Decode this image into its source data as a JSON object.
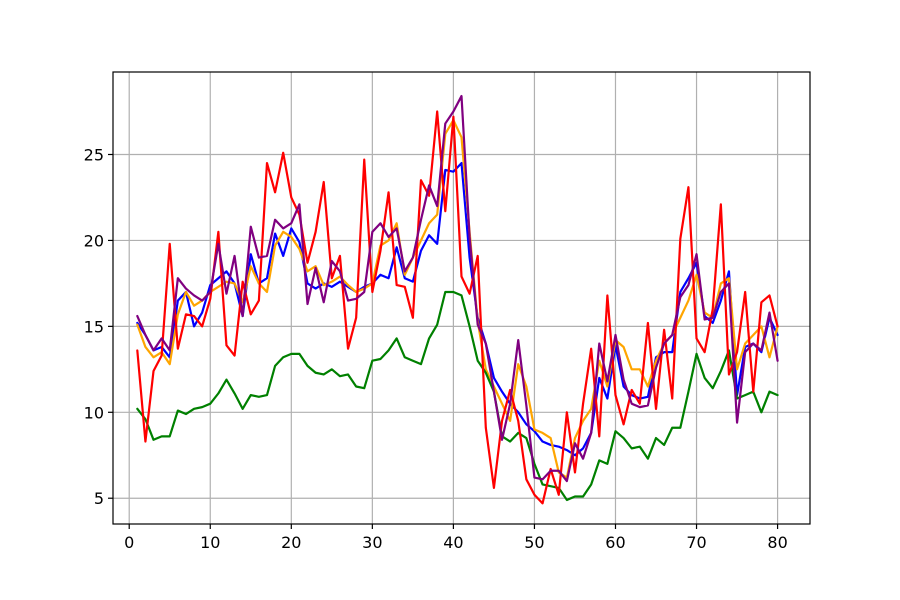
{
  "chart_data": {
    "type": "line",
    "title": "",
    "xlabel": "",
    "ylabel": "",
    "xlim": [
      -2,
      84
    ],
    "ylim": [
      3.5,
      29.8
    ],
    "grid": true,
    "legend": "none",
    "x_ticks": [
      0,
      10,
      20,
      30,
      40,
      50,
      60,
      70,
      80
    ],
    "y_ticks": [
      5,
      10,
      15,
      20,
      25
    ],
    "x_tick_labels": [
      "0",
      "10",
      "20",
      "30",
      "40",
      "50",
      "60",
      "70",
      "80"
    ],
    "y_tick_labels": [
      "5",
      "10",
      "15",
      "20",
      "25"
    ],
    "x": [
      1,
      2,
      3,
      4,
      5,
      6,
      7,
      8,
      9,
      10,
      11,
      12,
      13,
      14,
      15,
      16,
      17,
      18,
      19,
      20,
      21,
      22,
      23,
      24,
      25,
      26,
      27,
      28,
      29,
      30,
      31,
      32,
      33,
      34,
      35,
      36,
      37,
      38,
      39,
      40,
      41,
      42,
      43,
      44,
      45,
      46,
      47,
      48,
      49,
      50,
      51,
      52,
      53,
      54,
      55,
      56,
      57,
      58,
      59,
      60,
      61,
      62,
      63,
      64,
      65,
      66,
      67,
      68,
      69,
      70,
      71,
      72,
      73,
      74,
      75,
      76,
      77,
      78,
      79,
      80
    ],
    "series": [
      {
        "color": "#0000ff",
        "values": [
          15.2,
          14.5,
          13.6,
          13.8,
          13.2,
          16.5,
          17.0,
          15.0,
          15.8,
          17.4,
          17.8,
          18.2,
          17.5,
          15.6,
          19.2,
          17.5,
          17.8,
          20.4,
          19.1,
          20.7,
          19.9,
          17.5,
          17.2,
          17.5,
          17.3,
          17.6,
          17.3,
          17.0,
          17.3,
          17.5,
          18.0,
          17.8,
          19.6,
          17.8,
          17.6,
          19.4,
          20.3,
          19.8,
          24.1,
          24.0,
          24.5,
          19.0,
          15.5,
          14.0,
          12.0,
          11.2,
          10.5,
          10.0,
          9.3,
          8.9,
          8.3,
          8.1,
          8.0,
          7.8,
          7.5,
          7.9,
          8.8,
          12.0,
          10.8,
          13.9,
          11.5,
          11.0,
          10.8,
          10.9,
          13.2,
          13.5,
          13.5,
          17.0,
          17.8,
          18.7,
          15.6,
          15.2,
          16.5,
          18.2,
          11.0,
          13.8,
          14.0,
          13.5,
          15.5,
          14.5
        ]
      },
      {
        "color": "#ffa500",
        "values": [
          15.1,
          13.8,
          13.2,
          13.5,
          12.8,
          15.7,
          17.0,
          16.2,
          16.5,
          17.0,
          17.3,
          17.6,
          17.5,
          16.4,
          18.5,
          17.5,
          17.0,
          19.7,
          20.5,
          20.2,
          19.5,
          18.2,
          18.5,
          17.4,
          17.6,
          17.9,
          17.4,
          17.0,
          17.2,
          17.5,
          19.7,
          20.0,
          21.0,
          18.0,
          19.0,
          20.0,
          21.0,
          21.5,
          26.2,
          27.0,
          26.0,
          20.5,
          15.3,
          12.5,
          11.5,
          10.5,
          9.5,
          12.8,
          11.5,
          9.0,
          8.8,
          8.5,
          6.5,
          6.2,
          8.5,
          9.5,
          10.2,
          13.0,
          11.5,
          14.2,
          13.8,
          12.5,
          12.5,
          11.5,
          13.0,
          14.0,
          14.5,
          15.5,
          16.5,
          18.0,
          15.8,
          15.5,
          17.5,
          17.8,
          12.5,
          14.0,
          14.5,
          15.0,
          13.2,
          15.0
        ]
      },
      {
        "color": "#008000",
        "values": [
          10.2,
          9.6,
          8.4,
          8.6,
          8.6,
          10.1,
          9.9,
          10.2,
          10.3,
          10.5,
          11.1,
          11.9,
          11.1,
          10.2,
          11.0,
          10.9,
          11.0,
          12.7,
          13.2,
          13.4,
          13.4,
          12.7,
          12.3,
          12.2,
          12.5,
          12.1,
          12.2,
          11.5,
          11.4,
          13.0,
          13.1,
          13.6,
          14.3,
          13.2,
          13.0,
          12.8,
          14.3,
          15.1,
          17.0,
          17.0,
          16.8,
          15.0,
          13.0,
          12.3,
          11.2,
          8.6,
          8.3,
          8.8,
          8.5,
          7.0,
          5.8,
          5.7,
          5.6,
          4.9,
          5.1,
          5.1,
          5.8,
          7.2,
          7.0,
          8.9,
          8.5,
          7.9,
          8.0,
          7.3,
          8.5,
          8.1,
          9.1,
          9.1,
          11.2,
          13.4,
          12.0,
          11.4,
          12.4,
          13.6,
          10.8,
          11.0,
          11.2,
          10.0,
          11.2,
          11.0
        ]
      },
      {
        "color": "#ff0000",
        "values": [
          13.6,
          8.3,
          12.4,
          13.3,
          19.8,
          13.7,
          15.7,
          15.6,
          15.0,
          16.6,
          20.5,
          13.9,
          13.3,
          17.6,
          15.7,
          16.5,
          24.5,
          22.8,
          25.1,
          22.5,
          21.5,
          18.7,
          20.5,
          23.4,
          17.8,
          19.1,
          13.7,
          15.5,
          24.7,
          17.0,
          19.4,
          22.8,
          17.4,
          17.3,
          15.5,
          23.5,
          22.6,
          27.5,
          21.7,
          27.2,
          17.9,
          16.9,
          19.1,
          9.1,
          5.6,
          9.5,
          11.3,
          9.5,
          6.1,
          5.2,
          4.7,
          6.7,
          5.2,
          10.0,
          6.5,
          10.5,
          13.7,
          8.6,
          16.8,
          11.0,
          9.3,
          11.3,
          10.5,
          15.2,
          10.2,
          14.8,
          10.8,
          20.1,
          23.1,
          14.3,
          13.5,
          16.0,
          22.1,
          12.2,
          13.5,
          17.0,
          11.2,
          16.4,
          16.8,
          15.0
        ]
      },
      {
        "color": "#800080",
        "values": [
          15.6,
          14.5,
          13.6,
          14.3,
          13.6,
          17.8,
          17.2,
          16.8,
          16.5,
          17.0,
          19.8,
          16.9,
          19.1,
          15.6,
          20.8,
          19.0,
          19.1,
          21.2,
          20.7,
          21.0,
          22.1,
          16.3,
          18.4,
          16.4,
          18.8,
          18.2,
          16.5,
          16.6,
          17.0,
          20.5,
          21.0,
          20.2,
          20.7,
          18.2,
          19.0,
          21.2,
          23.2,
          22.0,
          26.8,
          27.5,
          28.4,
          20.2,
          15.1,
          14.0,
          11.2,
          8.4,
          10.5,
          14.2,
          10.4,
          6.2,
          6.1,
          6.6,
          6.6,
          6.0,
          8.2,
          7.3,
          8.8,
          14.0,
          11.8,
          14.5,
          11.9,
          10.5,
          10.3,
          10.4,
          12.6,
          14.0,
          14.5,
          16.7,
          17.4,
          19.2,
          15.4,
          15.5,
          17.0,
          17.5,
          9.4,
          13.5,
          14.0,
          13.6,
          15.8,
          13.0
        ]
      }
    ]
  }
}
